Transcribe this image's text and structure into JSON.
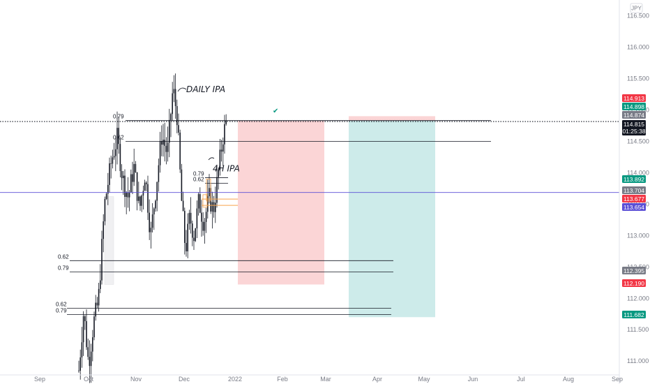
{
  "chart_data": {
    "type": "candlestick",
    "currency": "JPY",
    "ylim": [
      110.78,
      116.75
    ],
    "y_ticks": [
      "116.500",
      "116.000",
      "115.500",
      "115.000",
      "114.500",
      "114.000",
      "113.500",
      "113.000",
      "112.500",
      "112.000",
      "111.500",
      "111.000"
    ],
    "x_ticks": [
      "Sep",
      "Oct",
      "Nov",
      "Dec",
      "2022",
      "Feb",
      "Mar",
      "Apr",
      "May",
      "Jun",
      "Jul",
      "Aug",
      "Sep"
    ],
    "annotations": [
      {
        "text": "DAILY IPA",
        "price": 115.28
      },
      {
        "text": "4H IPA",
        "price": 114.02
      }
    ],
    "fib_levels": [
      {
        "label": "0.79",
        "price": 114.83
      },
      {
        "label": "0.62",
        "price": 114.5
      },
      {
        "label": "0.79",
        "price": 113.92
      },
      {
        "label": "0.62",
        "price": 113.83
      },
      {
        "label": "0.62",
        "price": 112.6
      },
      {
        "label": "0.79",
        "price": 112.42
      },
      {
        "label": "0.62",
        "price": 111.84
      },
      {
        "label": "0.79",
        "price": 111.74
      }
    ],
    "horizontal_lines": [
      {
        "name": "current-price",
        "price": 114.815,
        "style": "dotted",
        "color": "#131722"
      },
      {
        "name": "purple-line",
        "price": 113.685,
        "style": "solid",
        "color": "#5b4fd6"
      }
    ],
    "price_tags": [
      {
        "value": "114.913",
        "color": "#f23645"
      },
      {
        "value": "114.898",
        "color": "#089981"
      },
      {
        "value": "114.874",
        "color": "#787b86"
      },
      {
        "value": "114.815",
        "sub": "01:25:38",
        "color": "#131722"
      },
      {
        "value": "113.892",
        "color": "#089981"
      },
      {
        "value": "113.704",
        "color": "#787b86"
      },
      {
        "value": "113.677",
        "color": "#f23645"
      },
      {
        "value": "113.654",
        "color": "#5b4fd6"
      },
      {
        "value": "112.395",
        "color": "#787b86"
      },
      {
        "value": "112.190",
        "color": "#f23645"
      },
      {
        "value": "111.682",
        "color": "#089981"
      }
    ],
    "position_boxes": [
      {
        "name": "long-position-1",
        "entry": 114.83,
        "target": 112.4,
        "stop": 112.22
      },
      {
        "name": "long-position-2",
        "entry": 114.83,
        "target": 111.7,
        "stop": 114.9
      }
    ],
    "checkmark": "✔"
  }
}
